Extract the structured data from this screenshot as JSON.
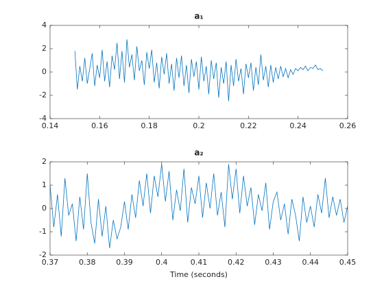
{
  "chart_data": [
    {
      "type": "line",
      "title": "a₁",
      "color": "#0072bd",
      "x": [
        0.15,
        0.151,
        0.152,
        0.153,
        0.154,
        0.155,
        0.156,
        0.157,
        0.158,
        0.159,
        0.16,
        0.161,
        0.162,
        0.163,
        0.164,
        0.165,
        0.166,
        0.167,
        0.168,
        0.169,
        0.17,
        0.171,
        0.172,
        0.173,
        0.174,
        0.175,
        0.176,
        0.177,
        0.178,
        0.179,
        0.18,
        0.181,
        0.182,
        0.183,
        0.184,
        0.185,
        0.186,
        0.187,
        0.188,
        0.189,
        0.19,
        0.191,
        0.192,
        0.193,
        0.194,
        0.195,
        0.196,
        0.197,
        0.198,
        0.199,
        0.2,
        0.201,
        0.202,
        0.203,
        0.204,
        0.205,
        0.206,
        0.207,
        0.208,
        0.209,
        0.21,
        0.211,
        0.212,
        0.213,
        0.214,
        0.215,
        0.216,
        0.217,
        0.218,
        0.219,
        0.22,
        0.221,
        0.222,
        0.223,
        0.224,
        0.225,
        0.226,
        0.227,
        0.228,
        0.229,
        0.23,
        0.231,
        0.232,
        0.233,
        0.234,
        0.235,
        0.236,
        0.237,
        0.238,
        0.239,
        0.24,
        0.241,
        0.242,
        0.243,
        0.244,
        0.245,
        0.246,
        0.247,
        0.248,
        0.249,
        0.25
      ],
      "values": [
        1.8,
        -1.5,
        0.5,
        -0.8,
        1.2,
        -1.0,
        0.3,
        1.6,
        -1.2,
        0.6,
        -0.5,
        1.9,
        -0.8,
        0.9,
        -1.3,
        1.4,
        0.2,
        2.5,
        -0.6,
        1.8,
        -0.9,
        2.8,
        0.4,
        1.5,
        -0.7,
        2.2,
        0.1,
        1.0,
        -1.1,
        1.7,
        0.3,
        1.9,
        -0.9,
        0.8,
        -1.4,
        1.3,
        -0.2,
        1.6,
        -1.0,
        0.7,
        -1.6,
        1.2,
        -0.5,
        1.4,
        -1.2,
        0.6,
        -1.8,
        1.1,
        -0.4,
        0.9,
        -1.5,
        1.3,
        -0.8,
        0.5,
        -1.9,
        1.0,
        -0.6,
        0.8,
        -2.2,
        0.4,
        -1.0,
        0.9,
        -2.5,
        0.6,
        -1.2,
        1.1,
        -0.8,
        0.3,
        -1.9,
        0.7,
        -0.5,
        0.8,
        -1.6,
        0.4,
        -1.1,
        1.5,
        -0.7,
        0.5,
        -1.3,
        0.6,
        -0.9,
        0.4,
        -0.6,
        0.5,
        -0.4,
        0.3,
        -0.5,
        0.2,
        -0.2,
        0.3,
        0.1,
        0.4,
        0.2,
        0.5,
        0.1,
        0.4,
        0.3,
        0.6,
        0.2,
        0.3,
        0.1
      ],
      "xlim": [
        0.14,
        0.26
      ],
      "xticks": [
        0.14,
        0.16,
        0.18,
        0.2,
        0.22,
        0.24,
        0.26
      ],
      "ylim": [
        -4,
        4
      ],
      "yticks": [
        -4,
        -2,
        0,
        2,
        4
      ]
    },
    {
      "type": "line",
      "title": "a₂",
      "color": "#0072bd",
      "xlabel": "Time (seconds)",
      "x": [
        0.37,
        0.371,
        0.372,
        0.373,
        0.374,
        0.375,
        0.376,
        0.377,
        0.378,
        0.379,
        0.38,
        0.381,
        0.382,
        0.383,
        0.384,
        0.385,
        0.386,
        0.387,
        0.388,
        0.389,
        0.39,
        0.391,
        0.392,
        0.393,
        0.394,
        0.395,
        0.396,
        0.397,
        0.398,
        0.399,
        0.4,
        0.401,
        0.402,
        0.403,
        0.404,
        0.405,
        0.406,
        0.407,
        0.408,
        0.409,
        0.41,
        0.411,
        0.412,
        0.413,
        0.414,
        0.415,
        0.416,
        0.417,
        0.418,
        0.419,
        0.42,
        0.421,
        0.422,
        0.423,
        0.424,
        0.425,
        0.426,
        0.427,
        0.428,
        0.429,
        0.43,
        0.431,
        0.432,
        0.433,
        0.434,
        0.435,
        0.436,
        0.437,
        0.438,
        0.439,
        0.44,
        0.441,
        0.442,
        0.443,
        0.444,
        0.445,
        0.446,
        0.447,
        0.448,
        0.449,
        0.45
      ],
      "values": [
        1.0,
        -0.8,
        0.6,
        -1.2,
        1.3,
        -0.3,
        0.2,
        -1.4,
        0.5,
        -0.9,
        1.5,
        -0.6,
        -1.5,
        0.4,
        -1.2,
        0.1,
        -1.7,
        -0.5,
        -1.3,
        -0.8,
        0.3,
        -0.9,
        0.6,
        -0.4,
        1.2,
        0.1,
        1.5,
        -0.2,
        1.4,
        0.5,
        1.9,
        0.3,
        1.6,
        -0.5,
        0.8,
        -0.1,
        1.7,
        -0.6,
        0.9,
        0.2,
        1.4,
        -0.4,
        1.1,
        0.0,
        1.5,
        -0.3,
        0.7,
        -0.8,
        1.9,
        0.4,
        1.7,
        -0.2,
        1.4,
        0.1,
        0.9,
        -0.7,
        0.6,
        -0.1,
        1.1,
        -0.9,
        0.3,
        0.7,
        -0.5,
        0.2,
        -1.1,
        0.4,
        -0.3,
        -1.4,
        0.5,
        -0.6,
        0.1,
        -0.8,
        0.6,
        -0.2,
        1.3,
        -0.4,
        0.5,
        -0.3,
        0.4,
        -0.6,
        0.1
      ],
      "xlim": [
        0.37,
        0.45
      ],
      "xticks": [
        0.37,
        0.38,
        0.39,
        0.4,
        0.41,
        0.42,
        0.43,
        0.44,
        0.45
      ],
      "ylim": [
        -2,
        2
      ],
      "yticks": [
        -2,
        -1,
        0,
        1,
        2
      ]
    }
  ]
}
